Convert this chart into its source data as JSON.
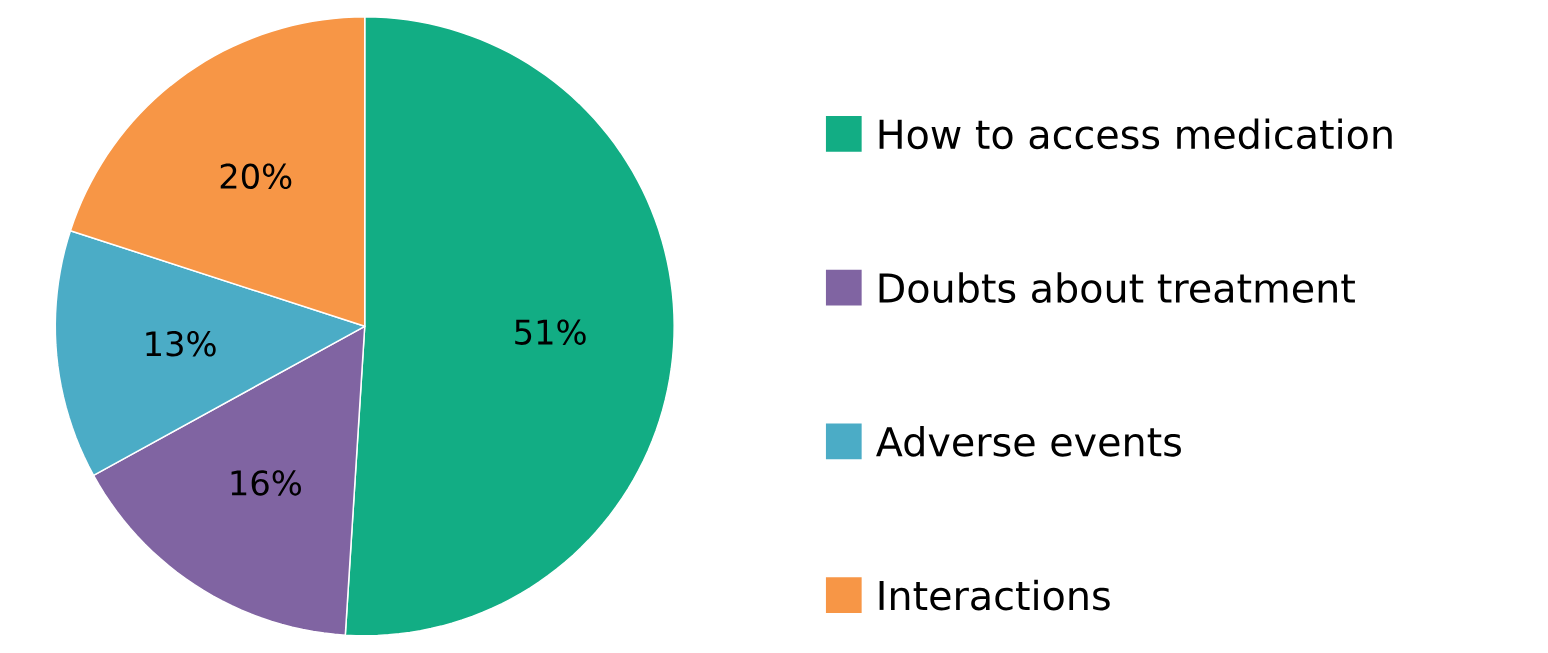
{
  "chart_data": {
    "type": "pie",
    "categories": [
      "How to access medication",
      "Doubts about treatment",
      "Adverse events",
      "Interactions"
    ],
    "values": [
      51,
      16,
      13,
      20
    ],
    "colors": [
      "#12ad84",
      "#8064a2",
      "#4bacc6",
      "#f79646"
    ],
    "value_labels": [
      "51%",
      "16%",
      "13%",
      "20%"
    ],
    "legend": "right"
  }
}
